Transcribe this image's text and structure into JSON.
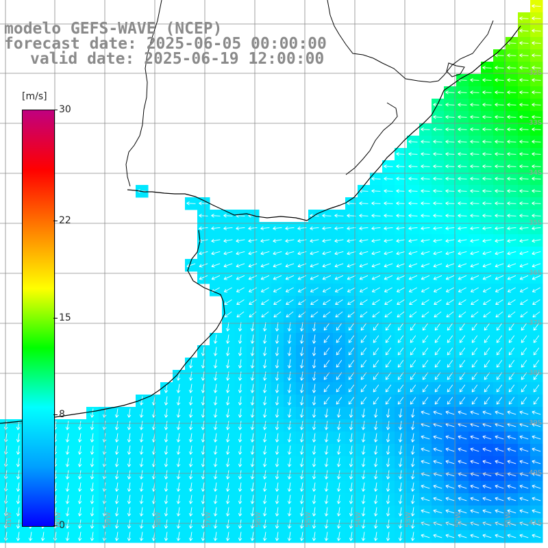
{
  "titles": {
    "line1": "modelo GEFS-WAVE (NCEP)",
    "line2": "forecast date: 2025-06-05 00:00:00",
    "line3": "valid date: 2025-06-19 12:00:00"
  },
  "colorbar": {
    "unit": "[m/s]",
    "tick_labels": [
      "30",
      "22",
      "15",
      "8",
      "0"
    ],
    "tick_values": [
      30,
      22,
      15,
      8,
      0
    ],
    "min": 0,
    "max": 30,
    "gradient_stops": [
      "#0000ff",
      "#00a0ff",
      "#00ffff",
      "#00ff00",
      "#ffff00",
      "#ff8000",
      "#ff0000",
      "#c00080"
    ]
  },
  "map": {
    "lat_labels": [
      "32S",
      "33S",
      "34S",
      "35S",
      "36S",
      "37S",
      "38S",
      "39S",
      "40S",
      "41S"
    ],
    "lon_labels": [
      "61W",
      "60W",
      "59W",
      "58W",
      "57W",
      "56W",
      "55W",
      "54W",
      "53W",
      "52W",
      "51W"
    ],
    "land_color": "#ffffff",
    "grid_color": "#888888",
    "coast_color": "#000000",
    "arrow_color": "#ffffff"
  }
}
